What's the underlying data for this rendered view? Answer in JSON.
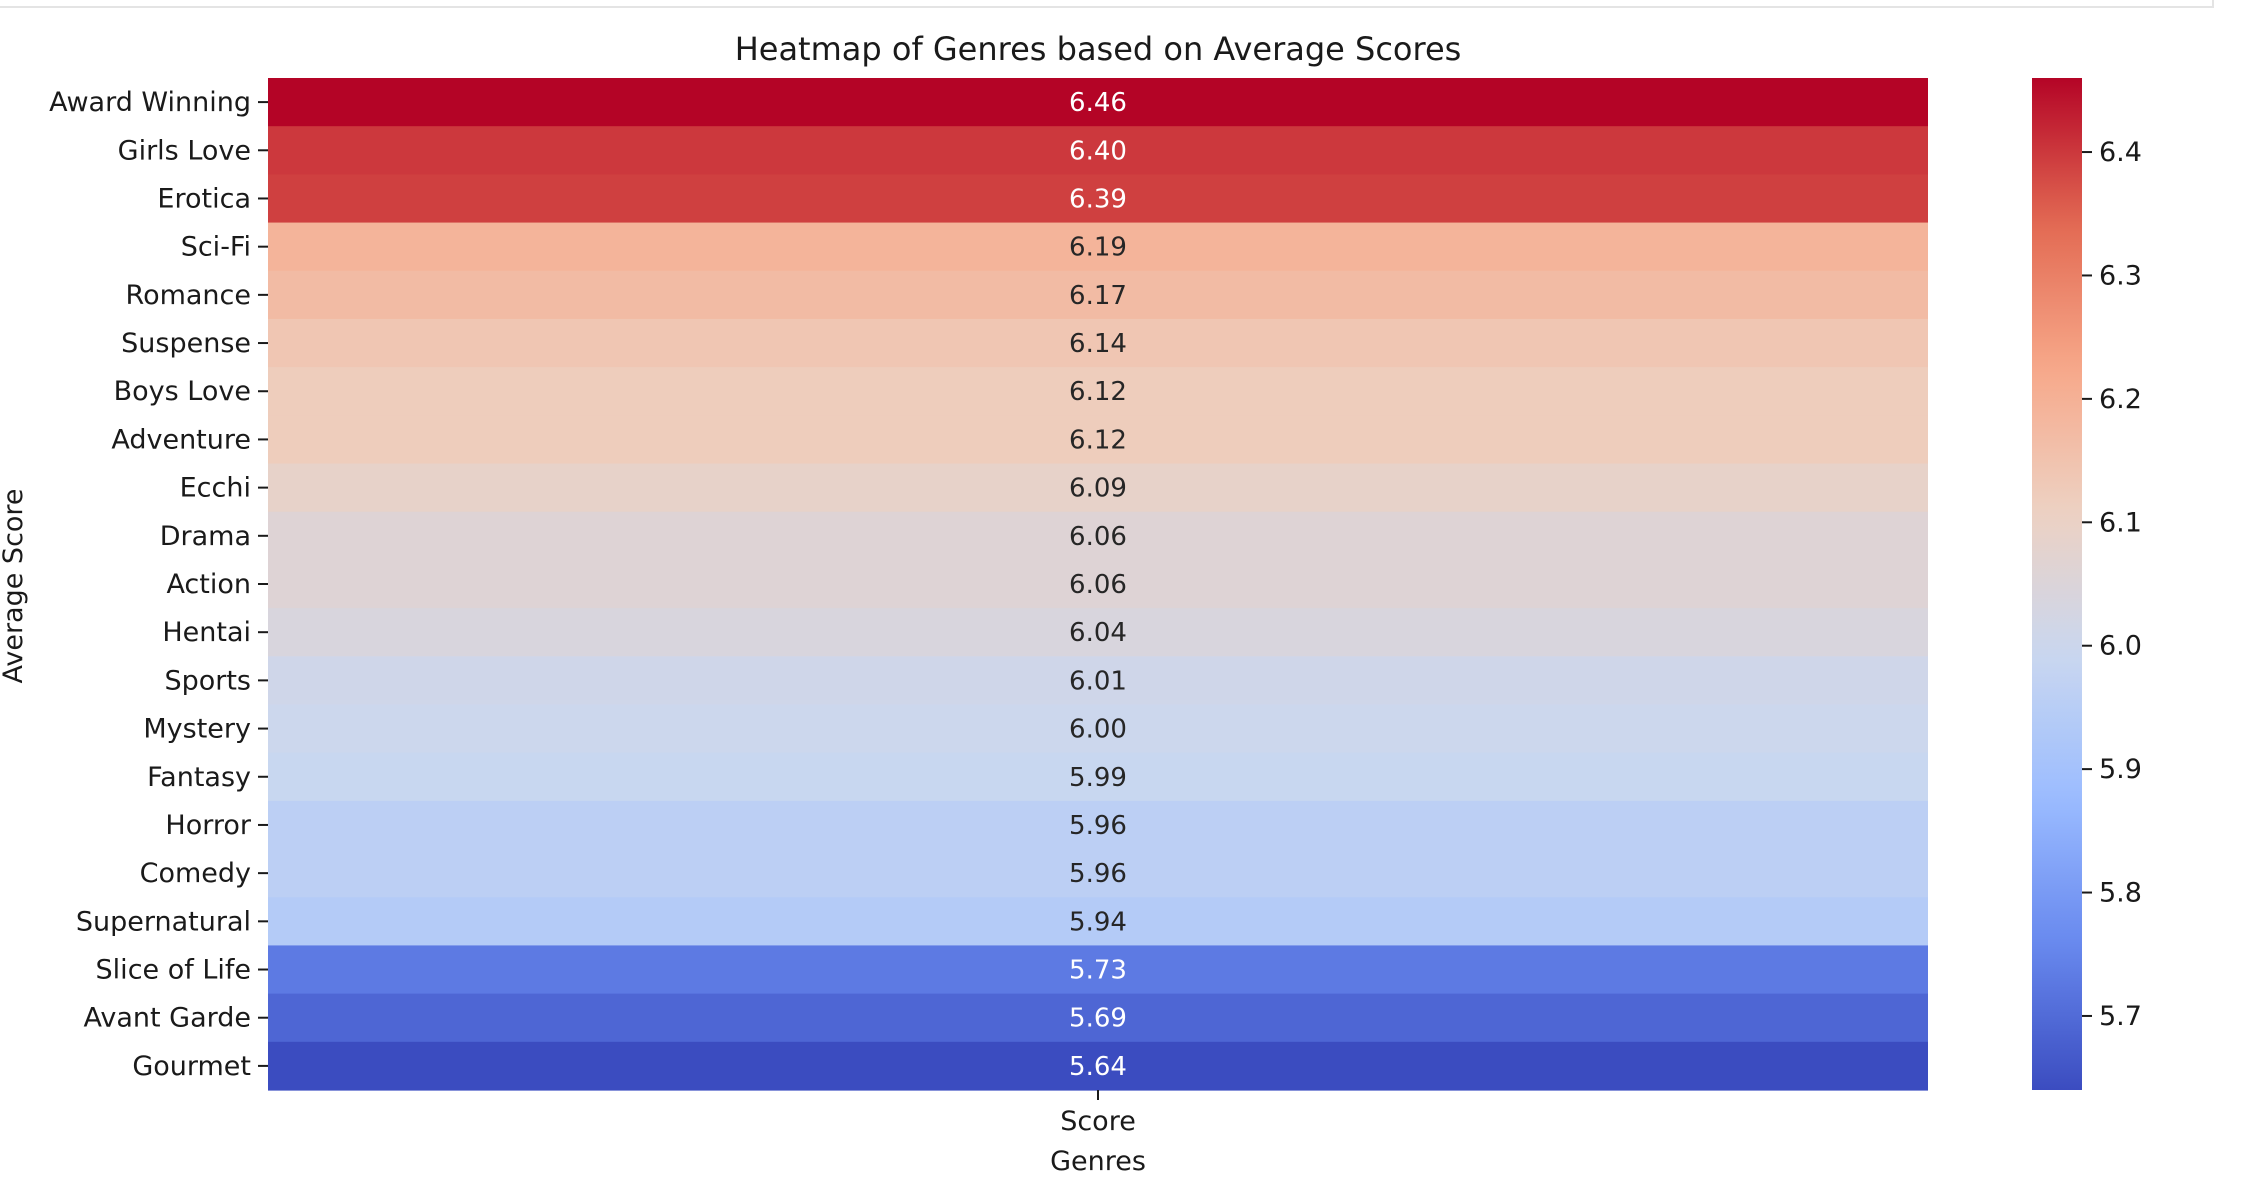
{
  "chart_data": {
    "type": "heatmap",
    "title": "Heatmap of Genres based on Average Scores",
    "xlabel": "Genres",
    "ylabel": "Average Score",
    "columns": [
      "Score"
    ],
    "rows": [
      "Award Winning",
      "Girls Love",
      "Erotica",
      "Sci-Fi",
      "Romance",
      "Suspense",
      "Boys Love",
      "Adventure",
      "Ecchi",
      "Drama",
      "Action",
      "Hentai",
      "Sports",
      "Mystery",
      "Fantasy",
      "Horror",
      "Comedy",
      "Supernatural",
      "Slice of Life",
      "Avant Garde",
      "Gourmet"
    ],
    "values": [
      6.46,
      6.4,
      6.39,
      6.19,
      6.17,
      6.14,
      6.12,
      6.12,
      6.09,
      6.06,
      6.06,
      6.04,
      6.01,
      6.0,
      5.99,
      5.96,
      5.96,
      5.94,
      5.73,
      5.69,
      5.64
    ],
    "value_labels": [
      "6.46",
      "6.40",
      "6.39",
      "6.19",
      "6.17",
      "6.14",
      "6.12",
      "6.12",
      "6.09",
      "6.06",
      "6.06",
      "6.04",
      "6.01",
      "6.00",
      "5.99",
      "5.96",
      "5.96",
      "5.94",
      "5.73",
      "5.69",
      "5.64"
    ],
    "colormap": "coolwarm",
    "colormap_stops": [
      "#3b4cc0",
      "#6788ee",
      "#9abbff",
      "#c9d7f0",
      "#edd1c2",
      "#f7a889",
      "#e26952",
      "#b40426"
    ],
    "vmin": 5.64,
    "vmax": 6.46,
    "colorbar_ticks": [
      "5.7",
      "5.8",
      "5.9",
      "6.0",
      "6.1",
      "6.2",
      "6.3",
      "6.4"
    ],
    "colorbar_tick_values": [
      5.7,
      5.8,
      5.9,
      6.0,
      6.1,
      6.2,
      6.3,
      6.4
    ],
    "annotation_colors": {
      "dark_text": "#262626",
      "light_text": "#ffffff"
    },
    "text_color": "#1a1a1a"
  }
}
